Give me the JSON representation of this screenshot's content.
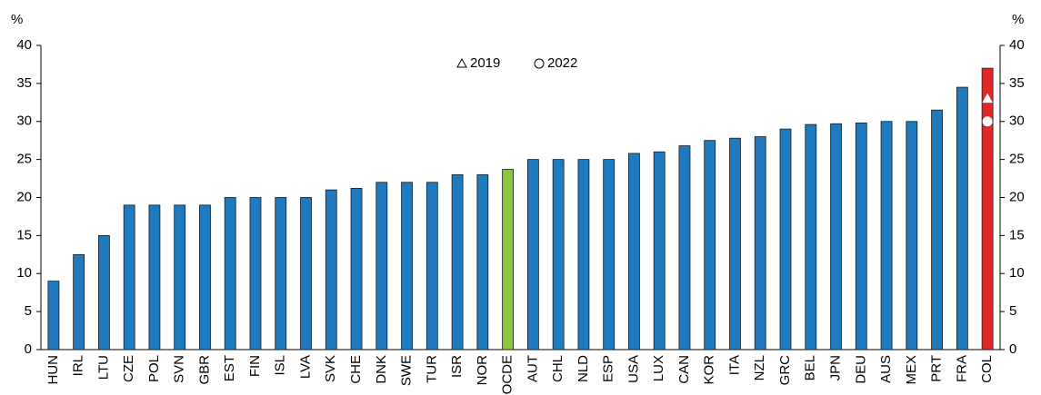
{
  "chart_data": {
    "type": "bar",
    "y_label": "%",
    "y2_label": "%",
    "categories": [
      "HUN",
      "IRL",
      "LTU",
      "CZE",
      "POL",
      "SVN",
      "GBR",
      "EST",
      "FIN",
      "ISL",
      "LVA",
      "SVK",
      "CHE",
      "DNK",
      "SWE",
      "TUR",
      "ISR",
      "NOR",
      "OCDE",
      "AUT",
      "CHL",
      "NLD",
      "ESP",
      "USA",
      "LUX",
      "CAN",
      "KOR",
      "ITA",
      "NZL",
      "GRC",
      "BEL",
      "JPN",
      "DEU",
      "AUS",
      "MEX",
      "PRT",
      "FRA",
      "COL"
    ],
    "values": [
      9,
      12.5,
      15,
      19,
      19,
      19,
      19,
      20,
      20,
      20,
      20,
      21,
      21.2,
      22,
      22,
      22,
      23,
      23,
      23.7,
      25,
      25,
      25,
      25,
      25.8,
      26,
      26.8,
      27.5,
      27.8,
      28,
      29,
      29.6,
      29.7,
      29.8,
      30,
      30,
      31.5,
      34.5,
      37
    ],
    "colors": [
      "#1f7bc0",
      "#1f7bc0",
      "#1f7bc0",
      "#1f7bc0",
      "#1f7bc0",
      "#1f7bc0",
      "#1f7bc0",
      "#1f7bc0",
      "#1f7bc0",
      "#1f7bc0",
      "#1f7bc0",
      "#1f7bc0",
      "#1f7bc0",
      "#1f7bc0",
      "#1f7bc0",
      "#1f7bc0",
      "#1f7bc0",
      "#1f7bc0",
      "#8cc63f",
      "#1f7bc0",
      "#1f7bc0",
      "#1f7bc0",
      "#1f7bc0",
      "#1f7bc0",
      "#1f7bc0",
      "#1f7bc0",
      "#1f7bc0",
      "#1f7bc0",
      "#1f7bc0",
      "#1f7bc0",
      "#1f7bc0",
      "#1f7bc0",
      "#1f7bc0",
      "#1f7bc0",
      "#1f7bc0",
      "#1f7bc0",
      "#1f7bc0",
      "#e32626"
    ],
    "markers": [
      {
        "name": "2019",
        "marker": "triangle",
        "color": "#ffffff",
        "values": [
          null,
          null,
          null,
          null,
          null,
          null,
          null,
          null,
          null,
          null,
          null,
          null,
          null,
          null,
          null,
          null,
          null,
          null,
          null,
          null,
          null,
          null,
          null,
          null,
          null,
          null,
          null,
          null,
          null,
          null,
          null,
          null,
          null,
          null,
          null,
          null,
          null,
          33
        ]
      },
      {
        "name": "2022",
        "marker": "circle",
        "color": "#ffffff",
        "values": [
          null,
          null,
          null,
          null,
          null,
          null,
          null,
          null,
          null,
          null,
          null,
          null,
          null,
          null,
          null,
          null,
          null,
          null,
          null,
          null,
          null,
          null,
          null,
          null,
          null,
          null,
          null,
          null,
          null,
          null,
          null,
          null,
          null,
          null,
          null,
          null,
          null,
          30
        ]
      }
    ],
    "ylim": [
      0,
      40
    ],
    "yticks": [
      0,
      5,
      10,
      15,
      20,
      25,
      30,
      35,
      40
    ],
    "y2lim": [
      0,
      40
    ],
    "y2ticks": [
      0,
      5,
      10,
      15,
      20,
      25,
      30,
      35,
      40
    ]
  }
}
